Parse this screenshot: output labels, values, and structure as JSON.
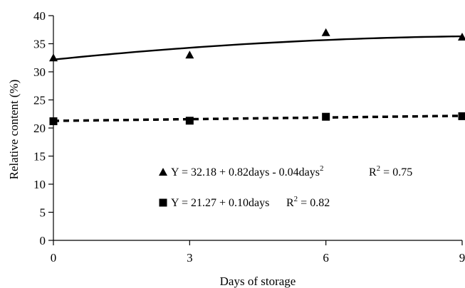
{
  "chart_data": {
    "type": "scatter",
    "xlabel": "Days of storage",
    "ylabel": "Relative content (%)",
    "xlim": [
      0,
      9
    ],
    "ylim": [
      0,
      40
    ],
    "xticks": [
      0,
      3,
      6,
      9
    ],
    "yticks": [
      0,
      5,
      10,
      15,
      20,
      25,
      30,
      35,
      40
    ],
    "grid": false,
    "legend_position": "middle",
    "series": [
      {
        "marker": "triangle",
        "line_style": "solid",
        "x": [
          0,
          3,
          6,
          9
        ],
        "y": [
          32.5,
          33.0,
          37.0,
          36.2
        ],
        "fit": {
          "intercept": 32.18,
          "linear": 0.82,
          "quadratic": -0.04
        },
        "equation_prefix": "Y = 32.18 + 0.82days - 0.04days",
        "equation_sup": "2",
        "r2_prefix": "R",
        "r2_sup": "2",
        "r2_suffix": " = 0.75"
      },
      {
        "marker": "square",
        "line_style": "dashed",
        "x": [
          0,
          3,
          6,
          9
        ],
        "y": [
          21.2,
          21.3,
          22.0,
          22.1
        ],
        "fit": {
          "intercept": 21.27,
          "linear": 0.1,
          "quadratic": 0
        },
        "equation_prefix": "Y = 21.27 + 0.10days",
        "equation_sup": "",
        "r2_prefix": "R",
        "r2_sup": "2",
        "r2_suffix": " = 0.82"
      }
    ]
  }
}
